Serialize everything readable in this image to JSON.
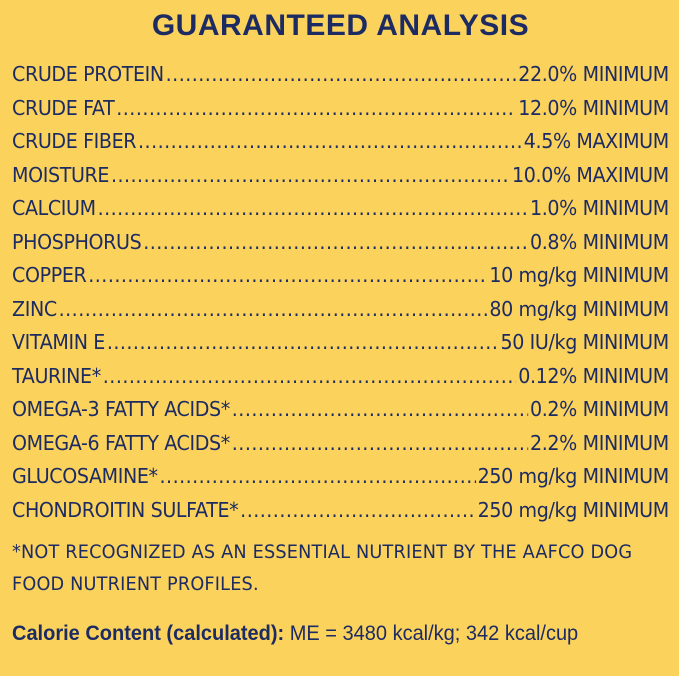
{
  "title": "GUARANTEED ANALYSIS",
  "rows": [
    {
      "name": "CRUDE PROTEIN",
      "value": "22.0% MINIMUM"
    },
    {
      "name": "CRUDE FAT",
      "value": "12.0% MINIMUM"
    },
    {
      "name": "CRUDE FIBER",
      "value": "4.5% MAXIMUM"
    },
    {
      "name": "MOISTURE",
      "value": "10.0% MAXIMUM"
    },
    {
      "name": "CALCIUM",
      "value": "1.0% MINIMUM"
    },
    {
      "name": "PHOSPHORUS",
      "value": "0.8% MINIMUM"
    },
    {
      "name": "COPPER",
      "value": "10 mg/kg MINIMUM"
    },
    {
      "name": "ZINC",
      "value": "80 mg/kg MINIMUM"
    },
    {
      "name": "VITAMIN E",
      "value": "50 IU/kg MINIMUM"
    },
    {
      "name": "TAURINE*",
      "value": "0.12% MINIMUM"
    },
    {
      "name": "OMEGA-3 FATTY ACIDS*",
      "value": "0.2% MINIMUM"
    },
    {
      "name": "OMEGA-6 FATTY ACIDS*",
      "value": "2.2% MINIMUM"
    },
    {
      "name": "GLUCOSAMINE*",
      "value": "250 mg/kg MINIMUM"
    },
    {
      "name": "CHONDROITIN SULFATE*",
      "value": "250 mg/kg MINIMUM"
    }
  ],
  "footnote": "*NOT RECOGNIZED AS AN ESSENTIAL NUTRIENT BY THE AAFCO DOG FOOD NUTRIENT PROFILES.",
  "calorie": {
    "label": "Calorie Content (calculated):",
    "value": " ME = 3480 kcal/kg; 342 kcal/cup"
  },
  "colors": {
    "background": "#fbd25c",
    "text": "#1d2b63"
  }
}
